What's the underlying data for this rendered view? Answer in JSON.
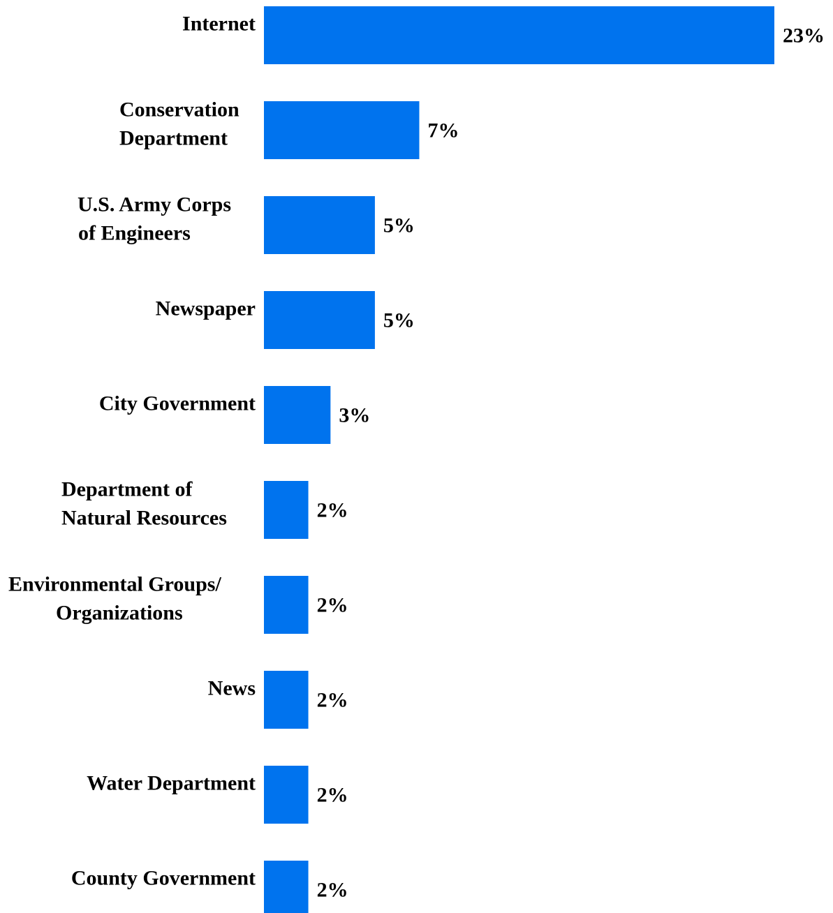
{
  "chart_data": {
    "type": "bar",
    "orientation": "horizontal",
    "title": "",
    "xlabel": "",
    "ylabel": "",
    "categories": [
      [
        "Internet"
      ],
      [
        "Conservation",
        "Department"
      ],
      [
        "U.S. Army Corps",
        "of Engineers"
      ],
      [
        "Newspaper"
      ],
      [
        "City Government"
      ],
      [
        "Department of",
        "Natural Resources"
      ],
      [
        "Environmental Groups/",
        "Organizations"
      ],
      [
        "News"
      ],
      [
        "Water Department"
      ],
      [
        "County Government"
      ]
    ],
    "values": [
      23,
      7,
      5,
      5,
      3,
      2,
      2,
      2,
      2,
      2
    ],
    "value_labels": [
      "23%",
      "7%",
      "5%",
      "5%",
      "3%",
      "2%",
      "2%",
      "2%",
      "2%",
      "2%"
    ],
    "xlim": [
      0,
      23
    ],
    "grid": false,
    "legend": "none",
    "bar_color": "#0073ee"
  }
}
